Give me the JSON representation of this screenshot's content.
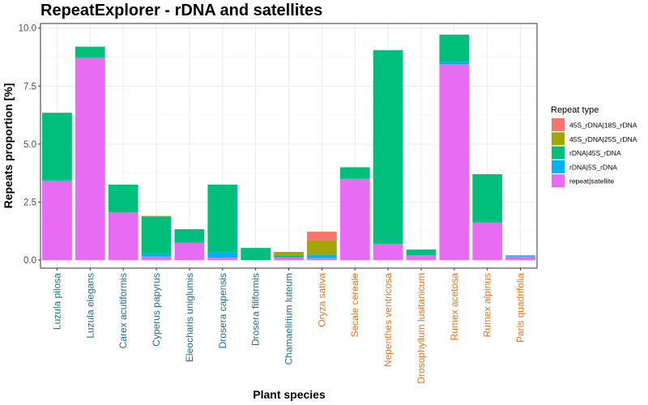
{
  "chart_data": {
    "type": "bar",
    "stacked": true,
    "title": "RepeatExplorer - rDNA and satellites",
    "xlabel": "Plant species",
    "ylabel": "Repeats proportion [%]",
    "ylim": [
      -0.35,
      10.2
    ],
    "yticks": [
      0.0,
      2.5,
      5.0,
      7.5,
      10.0
    ],
    "ytick_labels": [
      "0.0",
      "2.5",
      "5.0",
      "7.5",
      "10.0"
    ],
    "grid": true,
    "legend_position": "right",
    "legend_title": "Repeat type",
    "categories": [
      "Luzula pilosa",
      "Luzula elegans",
      "Carex acutiformis",
      "Cyperus papyrus",
      "Eleocharis uniglumis",
      "Drosera capensis",
      "Drosera filiformis",
      "Chamaelirium luteum",
      "Oryza sativa",
      "Secale cereale",
      "Nepenthes ventricosa",
      "Drosophyllum lusitanicum",
      "Rumex acetosa",
      "Rumex alpinus",
      "Paris quadrifolia"
    ],
    "category_colors": [
      "#1f6e8c",
      "#1f6e8c",
      "#1f6e8c",
      "#1f6e8c",
      "#1f6e8c",
      "#1f6e8c",
      "#1f6e8c",
      "#1f6e8c",
      "#e8741e",
      "#e8741e",
      "#e8741e",
      "#e8741e",
      "#e8741e",
      "#e8741e",
      "#e8741e"
    ],
    "series": [
      {
        "name": "repeat|satellite",
        "color": "#e76bf3",
        "values": [
          3.4,
          8.72,
          2.05,
          0.15,
          0.75,
          0.1,
          0.0,
          0.12,
          0.08,
          3.5,
          0.7,
          0.2,
          8.45,
          1.62,
          0.15
        ]
      },
      {
        "name": "rDNA|5S_rDNA",
        "color": "#00b0f6",
        "values": [
          0.03,
          0.0,
          0.0,
          0.1,
          0.0,
          0.22,
          0.0,
          0.0,
          0.15,
          0.0,
          0.0,
          0.0,
          0.1,
          0.0,
          0.05
        ]
      },
      {
        "name": "rDNA|45S_rDNA",
        "color": "#00bf7d",
        "values": [
          2.92,
          0.48,
          1.2,
          1.6,
          0.58,
          2.93,
          0.52,
          0.08,
          0.0,
          0.5,
          8.35,
          0.25,
          1.17,
          2.08,
          0.0
        ]
      },
      {
        "name": "45S_rDNA|25S_rDNA",
        "color": "#a3a500",
        "values": [
          0.0,
          0.0,
          0.0,
          0.05,
          0.0,
          0.0,
          0.0,
          0.15,
          0.62,
          0.0,
          0.0,
          0.0,
          0.0,
          0.0,
          0.0
        ]
      },
      {
        "name": "45S_rDNA|18S_rDNA",
        "color": "#f8766d",
        "values": [
          0.0,
          0.0,
          0.0,
          0.0,
          0.0,
          0.0,
          0.0,
          0.0,
          0.37,
          0.0,
          0.0,
          0.0,
          0.0,
          0.0,
          0.0
        ]
      }
    ],
    "legend_order": [
      "45S_rDNA|18S_rDNA",
      "45S_rDNA|25S_rDNA",
      "rDNA|45S_rDNA",
      "rDNA|5S_rDNA",
      "repeat|satellite"
    ]
  }
}
